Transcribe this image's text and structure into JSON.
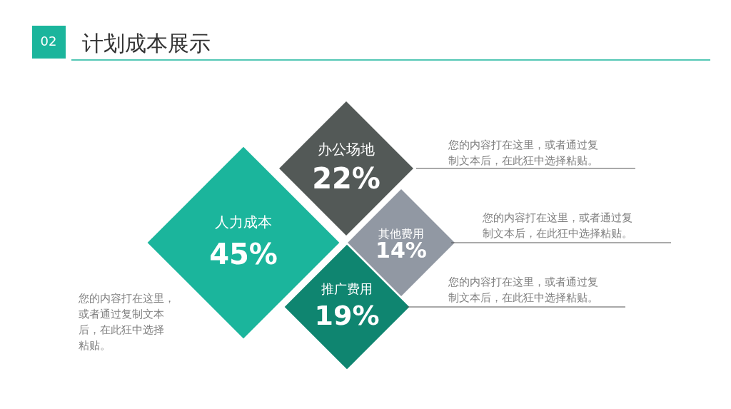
{
  "chart_data": {
    "type": "other",
    "title": "计划成本展示",
    "categories": [
      "人力成本",
      "办公场地",
      "其他费用",
      "推广费用"
    ],
    "values": [
      45,
      22,
      14,
      19
    ],
    "colors": [
      "#1bb59c",
      "#535957",
      "#9198a3",
      "#0f8570"
    ],
    "value_labels": [
      "45%",
      "22%",
      "14%",
      "19%"
    ],
    "annotations": [
      "02",
      "您的内容打在这里，或者通过复制文本后，在此狂中选择粘贴。",
      "您的内容打在这里，或者通过复制文本后，在此狂中选择粘贴。",
      "您的内容打在这里，或者通过复制文本后，在此狂中选择粘贴。",
      "您的内容打在这里，或者通过复制文本后，在此狂中选择粘贴。"
    ]
  }
}
